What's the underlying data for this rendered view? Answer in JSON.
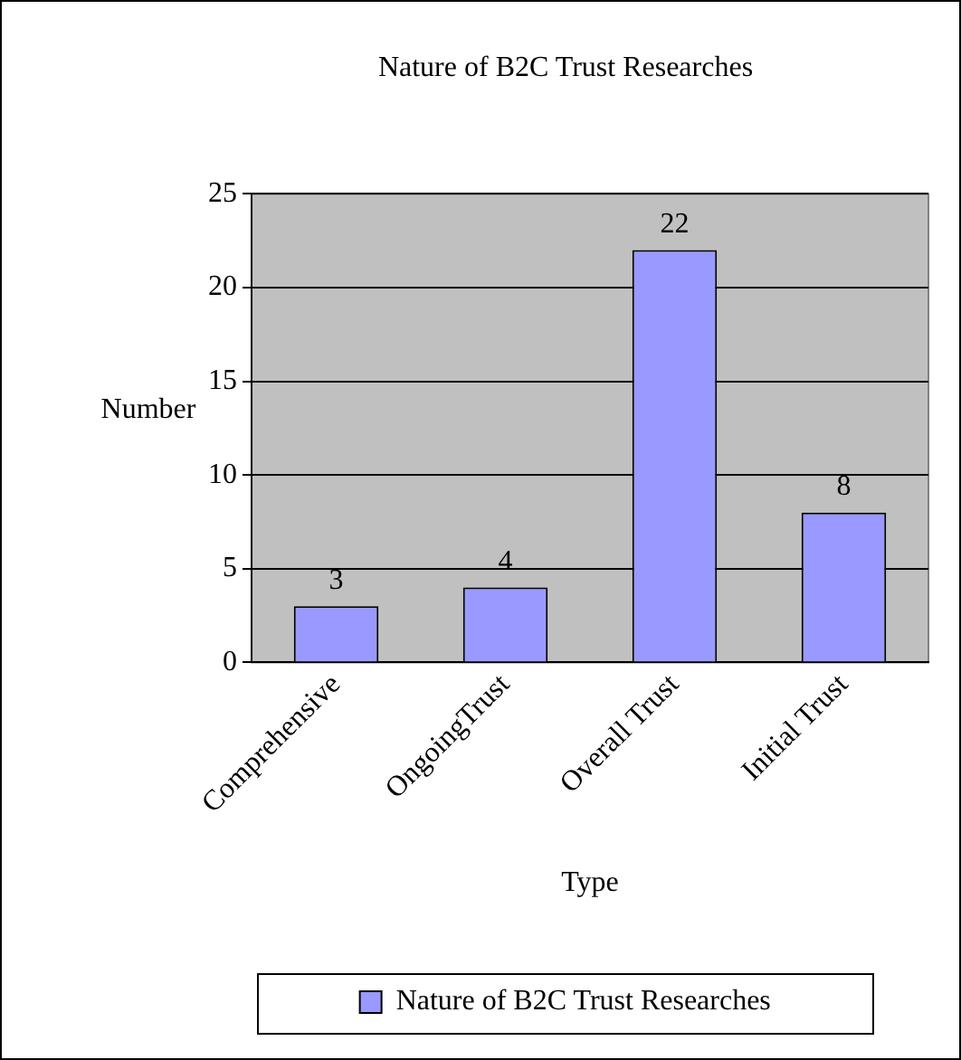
{
  "chart_data": {
    "type": "bar",
    "title": "Nature of B2C Trust Researches",
    "xlabel": "Type",
    "ylabel": "Number",
    "categories": [
      "Comprehensive",
      "OngoingTrust",
      "Overall Trust",
      "Initial Trust"
    ],
    "series": [
      {
        "name": "Nature of B2C Trust Researches",
        "color": "#9999ff",
        "values": [
          3,
          4,
          22,
          8
        ]
      }
    ],
    "ylim": [
      0,
      25
    ],
    "yticks": [
      0,
      5,
      10,
      15,
      20,
      25
    ],
    "grid": "y",
    "legend": "bottom",
    "data_labels": true
  }
}
